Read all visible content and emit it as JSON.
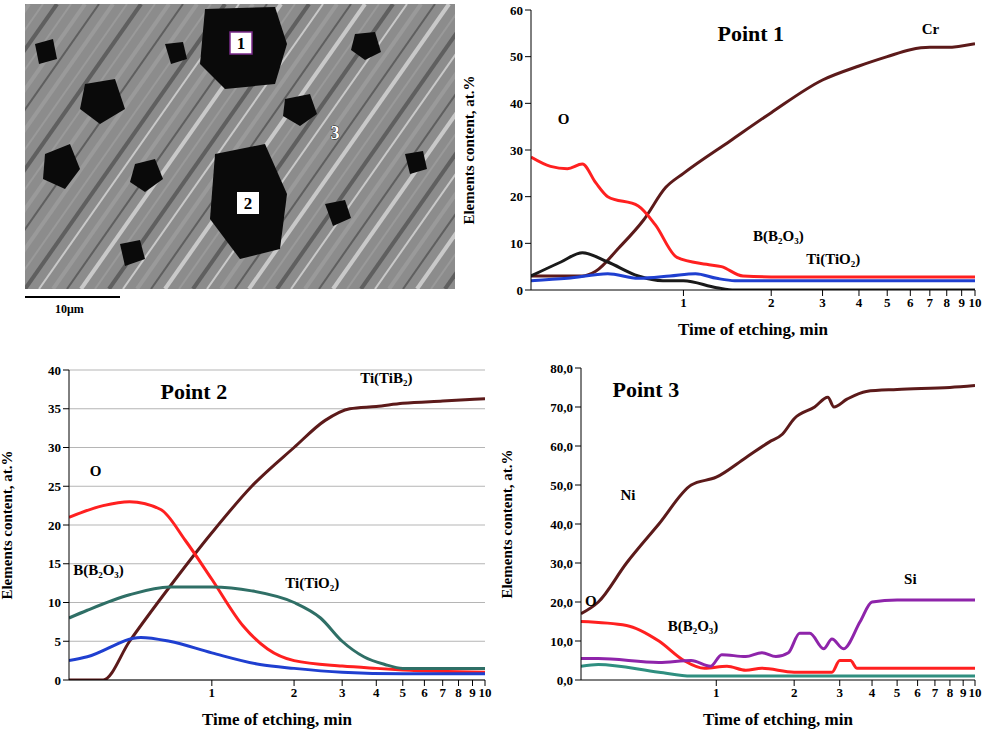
{
  "image": {
    "labels": [
      "1",
      "2",
      "3"
    ],
    "scale_bar": "10μm"
  },
  "chart_data": [
    {
      "type": "line",
      "title": "Point 1",
      "x_label": "Time of etching, min",
      "y_label": "Elements content, at.%",
      "log": "x",
      "grid": false,
      "xlim": [
        0.3,
        10
      ],
      "xticks": [
        1,
        2,
        3,
        4,
        5,
        6,
        7,
        8,
        9,
        10
      ],
      "ylim": [
        0,
        60
      ],
      "yticks": [
        0,
        10,
        20,
        30,
        40,
        50,
        60
      ],
      "series": [
        {
          "name": "Cr",
          "color": "#5c1a1a",
          "x": [
            0.3,
            0.45,
            0.5,
            0.6,
            0.73,
            0.87,
            1,
            1.45,
            2,
            3,
            4,
            5,
            6,
            7,
            8,
            10
          ],
          "values": [
            3,
            3,
            4,
            9,
            15,
            22,
            25,
            32,
            38,
            45,
            48,
            50,
            51.5,
            52,
            52,
            52.8
          ]
        },
        {
          "name": "O",
          "color": "#ff2020",
          "x": [
            0.3,
            0.35,
            0.4,
            0.45,
            0.5,
            0.55,
            0.7,
            0.8,
            0.95,
            1.2,
            1.35,
            1.6,
            2,
            3,
            5,
            10
          ],
          "values": [
            28.5,
            26.5,
            26,
            27,
            23,
            20,
            18,
            14,
            7,
            5.5,
            5,
            3,
            2.8,
            2.8,
            2.8,
            2.8
          ]
        },
        {
          "name": "B(B₂O₃)",
          "color": "#1a1a1a",
          "x": [
            0.3,
            0.38,
            0.45,
            0.55,
            0.7,
            0.85,
            1,
            1.3,
            1.5,
            2,
            10
          ],
          "values": [
            3,
            6,
            8,
            6,
            3,
            2,
            2,
            0.5,
            0,
            0,
            0
          ]
        },
        {
          "name": "Ti(TiO₂)",
          "color": "#1f3fd0",
          "x": [
            0.3,
            0.4,
            0.55,
            0.7,
            0.9,
            1.1,
            1.3,
            1.5,
            2,
            10
          ],
          "values": [
            2,
            2.5,
            3.5,
            2.5,
            3,
            3.5,
            2.5,
            2,
            2,
            2
          ]
        }
      ]
    },
    {
      "type": "line",
      "title": "Point 2",
      "x_label": "Time of etching, min",
      "y_label": "Elements content, at.%",
      "log": "x",
      "grid": true,
      "xlim": [
        0.3,
        10
      ],
      "xticks": [
        1,
        2,
        3,
        4,
        5,
        6,
        7,
        8,
        9,
        10
      ],
      "ylim": [
        0,
        40
      ],
      "yticks": [
        0,
        5,
        10,
        15,
        20,
        25,
        30,
        35,
        40
      ],
      "series": [
        {
          "name": "Ti(TiB₂)",
          "color": "#5c1a1a",
          "x": [
            0.3,
            0.4,
            0.5,
            0.7,
            1,
            1.4,
            2,
            2.6,
            3.2,
            4,
            5,
            7,
            10
          ],
          "values": [
            0,
            0,
            5,
            12,
            19,
            25,
            30,
            33.5,
            35,
            35.3,
            35.7,
            36,
            36.3
          ]
        },
        {
          "name": "O",
          "color": "#ff2020",
          "x": [
            0.3,
            0.4,
            0.5,
            0.65,
            0.8,
            1,
            1.3,
            1.6,
            2,
            3,
            4,
            5,
            10
          ],
          "values": [
            21,
            22.5,
            23,
            22,
            18,
            13,
            7,
            4,
            2.5,
            1.8,
            1.5,
            1.3,
            1
          ]
        },
        {
          "name": "B(B₂O₃)",
          "color": "#2f6f66",
          "x": [
            0.3,
            0.35,
            0.5,
            0.7,
            1,
            1.4,
            2,
            2.5,
            3,
            3.6,
            4.3,
            5,
            10
          ],
          "values": [
            8,
            9,
            11,
            12,
            12,
            11.5,
            10,
            8,
            5,
            3,
            2,
            1.5,
            1.5
          ]
        },
        {
          "name": "Ti(TiO₂)",
          "color": "#1f3fd0",
          "x": [
            0.3,
            0.35,
            0.55,
            0.7,
            1,
            1.5,
            2,
            3,
            5,
            10
          ],
          "values": [
            2.5,
            3,
            5.5,
            5,
            3.5,
            2,
            1.5,
            1,
            0.8,
            0.8
          ]
        }
      ]
    },
    {
      "type": "line",
      "title": "Point 3",
      "x_label": "Time of etching, min",
      "y_label": "Elements content, at.%",
      "log": "x",
      "grid": false,
      "xlim": [
        0.3,
        10
      ],
      "xticks": [
        1,
        2,
        3,
        4,
        5,
        6,
        7,
        8,
        9,
        10
      ],
      "ylim": [
        0,
        80
      ],
      "yticks": [
        {
          "value": 0,
          "label": "0,0"
        },
        {
          "value": 10,
          "label": "10,0"
        },
        {
          "value": 20,
          "label": "20,0"
        },
        {
          "value": 30,
          "label": "30,0"
        },
        {
          "value": 40,
          "label": "40,0"
        },
        {
          "value": 50,
          "label": "50,0"
        },
        {
          "value": 60,
          "label": "60,0"
        },
        {
          "value": 70,
          "label": "70,0"
        },
        {
          "value": 80,
          "label": "80,0"
        }
      ],
      "series": [
        {
          "name": "Ni",
          "color": "#5c1a1a",
          "x": [
            0.3,
            0.35,
            0.45,
            0.6,
            0.8,
            1,
            1.3,
            1.6,
            1.8,
            2,
            2.4,
            2.7,
            2.85,
            3.2,
            3.8,
            5,
            8,
            10
          ],
          "values": [
            17,
            20,
            30,
            40,
            50,
            52,
            57,
            61,
            63,
            67,
            70,
            72.5,
            70,
            72,
            74,
            74.5,
            75,
            75.5
          ]
        },
        {
          "name": "O",
          "color": "#ff2020",
          "x": [
            0.3,
            0.45,
            0.6,
            0.75,
            0.9,
            1.1,
            1.3,
            1.5,
            2,
            2.8,
            3,
            3.3,
            3.5,
            10
          ],
          "values": [
            15,
            14,
            10,
            5,
            3,
            3.5,
            2.5,
            3,
            2,
            2,
            5,
            5,
            3,
            3
          ]
        },
        {
          "name": "B(B₂O₃)",
          "color": "#2f8f80",
          "x": [
            0.3,
            0.35,
            0.6,
            0.8,
            10
          ],
          "values": [
            3.5,
            4,
            2,
            1,
            1
          ]
        },
        {
          "name": "Si",
          "color": "#8e24aa",
          "x": [
            0.3,
            0.35,
            0.6,
            0.8,
            0.95,
            1.05,
            1.3,
            1.5,
            1.7,
            1.9,
            2.1,
            2.3,
            2.6,
            2.8,
            3.1,
            3.6,
            4,
            5,
            10
          ],
          "values": [
            5.5,
            5.5,
            4.5,
            5,
            3.5,
            6.5,
            6,
            7,
            6,
            7,
            12,
            12,
            8,
            10.5,
            8,
            15,
            20,
            20.5,
            20.5
          ]
        }
      ]
    }
  ]
}
